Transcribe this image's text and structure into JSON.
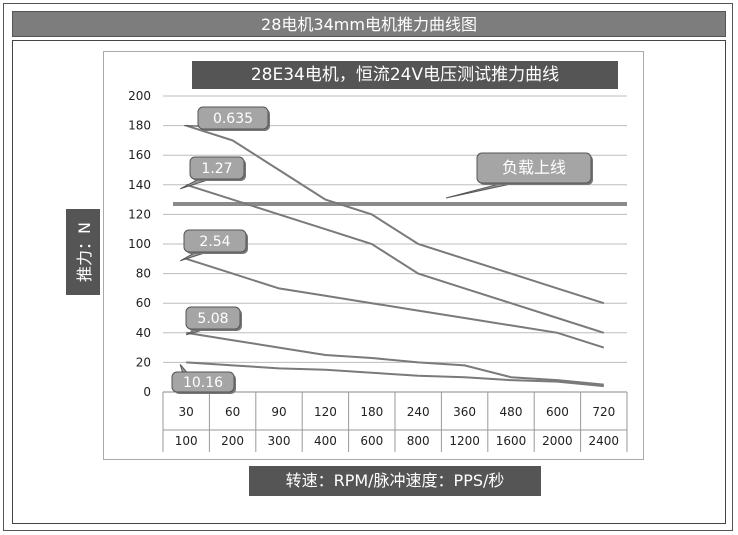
{
  "header_title": "28电机34mm电机推力曲线图",
  "chart_data": {
    "type": "line",
    "title": "28E34电机，恒流24V电压测试推力曲线",
    "ylabel": "推力：N",
    "xlabel": "转速：RPM/脉冲速度：PPS/秒",
    "categories": [
      "30",
      "60",
      "90",
      "120",
      "180",
      "240",
      "360",
      "480",
      "600",
      "720"
    ],
    "categories_secondary": [
      "100",
      "200",
      "300",
      "400",
      "600",
      "800",
      "1200",
      "1600",
      "2000",
      "2400"
    ],
    "ylim": [
      0,
      200
    ],
    "yticks": [
      0,
      20,
      40,
      60,
      80,
      100,
      120,
      140,
      160,
      180,
      200
    ],
    "grid": true,
    "series": [
      {
        "name": "0.635",
        "values": [
          180,
          170,
          150,
          130,
          120,
          100,
          90,
          80,
          70,
          60
        ]
      },
      {
        "name": "1.27",
        "values": [
          140,
          130,
          120,
          110,
          100,
          80,
          70,
          60,
          50,
          40
        ]
      },
      {
        "name": "2.54",
        "values": [
          90,
          80,
          70,
          65,
          60,
          55,
          50,
          45,
          40,
          30
        ]
      },
      {
        "name": "5.08",
        "values": [
          40,
          35,
          30,
          25,
          23,
          20,
          18,
          10,
          8,
          5
        ]
      },
      {
        "name": "10.16",
        "values": [
          20,
          18,
          16,
          15,
          13,
          11,
          10,
          8,
          7,
          4
        ]
      }
    ],
    "reference_line": {
      "label": "负载上线",
      "value": 127
    },
    "colors": {
      "line": "#7a7a7a",
      "reference": "#8a8a8a",
      "grid": "#bdbdbd"
    }
  }
}
